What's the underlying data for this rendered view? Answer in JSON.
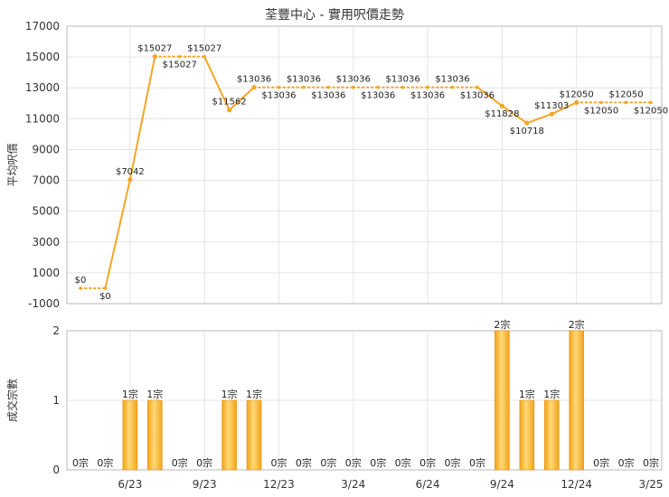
{
  "title": "荃豐中心 - 實用呎價走勢",
  "chart_data": [
    {
      "type": "line",
      "ylabel": "平均呎價",
      "ylim": [
        -1000,
        17000
      ],
      "yticks": [
        -1000,
        1000,
        3000,
        5000,
        7000,
        9000,
        11000,
        13000,
        15000,
        17000
      ],
      "xtick_labels": [
        "6/23",
        "9/23",
        "12/23",
        "3/24",
        "6/24",
        "9/24",
        "12/24",
        "3/25"
      ],
      "color": "#f5a623",
      "x": [
        "4/23",
        "5/23",
        "6/23",
        "7/23",
        "8/23",
        "9/23",
        "10/23",
        "11/23",
        "12/23",
        "1/24",
        "2/24",
        "3/24",
        "4/24",
        "5/24",
        "6/24",
        "7/24",
        "8/24",
        "9/24",
        "10/24",
        "11/24",
        "12/24",
        "1/25",
        "2/25",
        "3/25"
      ],
      "values": [
        0,
        0,
        7042,
        15027,
        15027,
        15027,
        11562,
        13036,
        13036,
        13036,
        13036,
        13036,
        13036,
        13036,
        13036,
        13036,
        13036,
        11828,
        10718,
        11303,
        12050,
        12050,
        12050,
        12050
      ],
      "transaction_months": [
        false,
        false,
        true,
        true,
        false,
        false,
        true,
        true,
        false,
        false,
        false,
        false,
        false,
        false,
        false,
        false,
        false,
        true,
        true,
        true,
        true,
        false,
        false,
        false
      ],
      "data_labels": [
        "$0",
        "$0",
        "$7042",
        "$15027",
        "$15027",
        "$15027",
        "$11562",
        "$13036",
        "$13036",
        "$13036",
        "$13036",
        "$13036",
        "$13036",
        "$13036",
        "$13036",
        "$13036",
        "$13036",
        "$11828",
        "$10718",
        "$11303",
        "$12050",
        "$12050",
        "$12050",
        "$12050"
      ]
    },
    {
      "type": "bar",
      "ylabel": "成交宗數",
      "ylim": [
        0,
        2
      ],
      "yticks": [
        0,
        1,
        2
      ],
      "xtick_labels": [
        "6/23",
        "9/23",
        "12/23",
        "3/24",
        "6/24",
        "9/24",
        "12/24",
        "3/25"
      ],
      "color": "#f5a623",
      "values": [
        0,
        0,
        1,
        1,
        0,
        0,
        1,
        1,
        0,
        0,
        0,
        0,
        0,
        0,
        0,
        0,
        0,
        2,
        1,
        1,
        2,
        0,
        0,
        0
      ],
      "data_labels": [
        "0宗",
        "0宗",
        "1宗",
        "1宗",
        "0宗",
        "0宗",
        "1宗",
        "1宗",
        "0宗",
        "0宗",
        "0宗",
        "0宗",
        "0宗",
        "0宗",
        "0宗",
        "0宗",
        "0宗",
        "2宗",
        "1宗",
        "1宗",
        "2宗",
        "0宗",
        "0宗",
        "0宗"
      ]
    }
  ]
}
